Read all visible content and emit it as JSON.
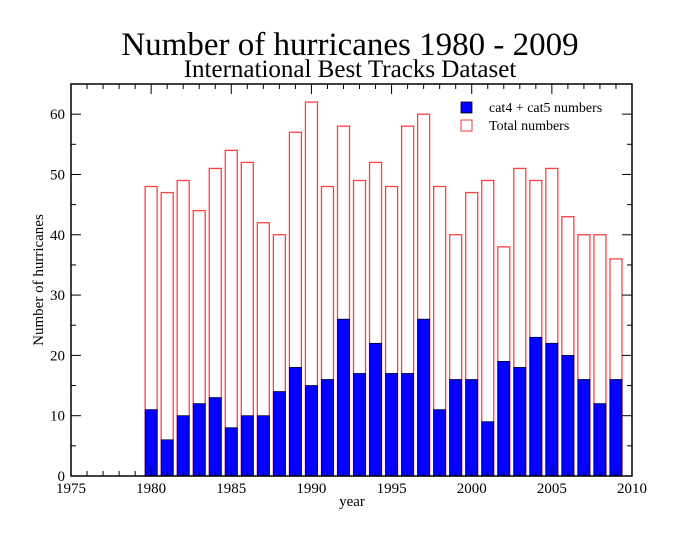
{
  "chart_data": {
    "type": "bar",
    "title": "Number of hurricanes  1980 - 2009",
    "subtitle": "International Best Tracks Dataset",
    "xlabel": "year",
    "ylabel": "Number of hurricanes",
    "xlim": [
      1975,
      2010
    ],
    "ylim": [
      0,
      65
    ],
    "xticks": [
      1975,
      1980,
      1985,
      1990,
      1995,
      2000,
      2005,
      2010
    ],
    "yticks": [
      0,
      10,
      20,
      30,
      40,
      50,
      60
    ],
    "grid": false,
    "legend_position": "top-right",
    "categories": [
      1980,
      1981,
      1982,
      1983,
      1984,
      1985,
      1986,
      1987,
      1988,
      1989,
      1990,
      1991,
      1992,
      1993,
      1994,
      1995,
      1996,
      1997,
      1998,
      1999,
      2000,
      2001,
      2002,
      2003,
      2004,
      2005,
      2006,
      2007,
      2008,
      2009
    ],
    "series": [
      {
        "name": "Total numbers",
        "style": "outline",
        "color": "#ff0000",
        "values": [
          48,
          47,
          49,
          44,
          51,
          54,
          52,
          42,
          40,
          57,
          62,
          48,
          58,
          49,
          52,
          48,
          58,
          60,
          48,
          40,
          47,
          49,
          38,
          51,
          49,
          51,
          43,
          40,
          40,
          36
        ]
      },
      {
        "name": "cat4 + cat5 numbers",
        "style": "filled",
        "color": "#0000ff",
        "values": [
          11,
          6,
          10,
          12,
          13,
          8,
          10,
          10,
          14,
          18,
          15,
          16,
          26,
          17,
          22,
          17,
          17,
          26,
          11,
          16,
          16,
          9,
          19,
          18,
          23,
          22,
          20,
          16,
          12,
          16
        ]
      }
    ]
  }
}
